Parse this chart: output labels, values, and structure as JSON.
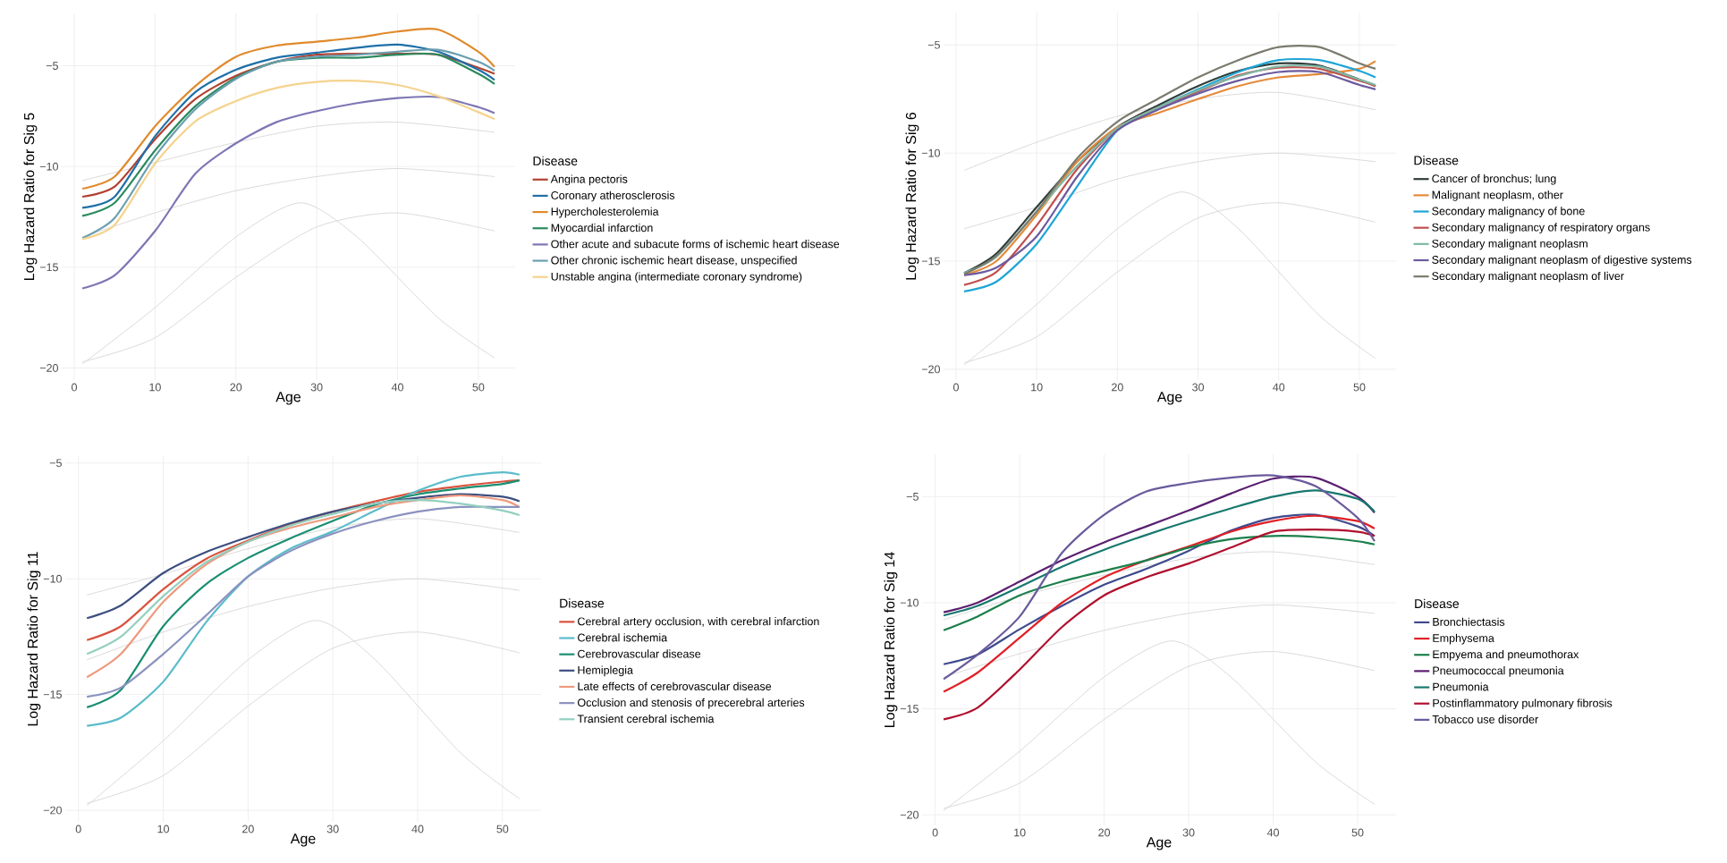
{
  "chart_data": [
    {
      "type": "line",
      "xlabel": "Age",
      "ylabel": "Log Hazard Ratio for Sig 5",
      "legend_title": "Disease",
      "legend": "right",
      "grid": true,
      "marker": "none",
      "line_style": "solid",
      "xlim": [
        -1.55,
        54.55
      ],
      "ylim": [
        -20.6,
        -2.4
      ],
      "xticks": [
        0,
        10,
        20,
        30,
        40,
        50
      ],
      "yticks": [
        {
          "value": -20,
          "label": "−20"
        },
        {
          "value": -15,
          "label": "−15"
        },
        {
          "value": -10,
          "label": "−10"
        },
        {
          "value": -5,
          "label": "−5"
        }
      ],
      "x": [
        1,
        5,
        10,
        15,
        20,
        25,
        30,
        35,
        40,
        45,
        50,
        52
      ],
      "series": [
        {
          "color": "#d6d6d6",
          "x": [
            1,
            10,
            20,
            30,
            40,
            52
          ],
          "values": [
            -10.7,
            -9.8,
            -8.8,
            -8.0,
            -7.8,
            -8.3
          ]
        },
        {
          "color": "#d6d6d6",
          "x": [
            1,
            10,
            20,
            30,
            40,
            52
          ],
          "values": [
            -13.5,
            -12.3,
            -11.2,
            -10.5,
            -10.1,
            -10.5
          ]
        },
        {
          "color": "#d6d6d6",
          "x": [
            1,
            10,
            20,
            30,
            40,
            52
          ],
          "values": [
            -19.7,
            -18.5,
            -15.5,
            -13.0,
            -12.3,
            -13.2
          ]
        },
        {
          "color": "#d6d6d6",
          "x": [
            1,
            10,
            20,
            28,
            35,
            45,
            52
          ],
          "values": [
            -19.8,
            -17.0,
            -13.5,
            -11.8,
            -13.5,
            -17.5,
            -19.5
          ]
        },
        {
          "name": "Angina pectoris",
          "color": "#b2402f",
          "values": [
            -11.5,
            -11.0,
            -8.65,
            -6.65,
            -5.5,
            -4.8,
            -4.45,
            -4.4,
            -4.4,
            -4.45,
            -5.1,
            -5.4
          ]
        },
        {
          "name": "Coronary atherosclerosis",
          "color": "#1f6fa8",
          "values": [
            -12.05,
            -11.5,
            -8.5,
            -6.3,
            -5.2,
            -4.6,
            -4.35,
            -4.1,
            -3.95,
            -4.3,
            -5.2,
            -5.7
          ]
        },
        {
          "name": "Hypercholesterolemia",
          "color": "#e08a2c",
          "values": [
            -11.1,
            -10.5,
            -8.0,
            -6.0,
            -4.55,
            -4.0,
            -3.8,
            -3.6,
            -3.3,
            -3.2,
            -4.3,
            -5.05
          ]
        },
        {
          "name": "Myocardial infarction",
          "color": "#2a8a5e",
          "values": [
            -12.45,
            -11.8,
            -9.2,
            -7.0,
            -5.6,
            -4.8,
            -4.6,
            -4.6,
            -4.45,
            -4.45,
            -5.4,
            -5.9
          ]
        },
        {
          "name": "Other acute and subacute forms of ischemic heart disease",
          "color": "#7d76b5",
          "values": [
            -16.05,
            -15.4,
            -13.2,
            -10.35,
            -8.85,
            -7.8,
            -7.25,
            -6.85,
            -6.6,
            -6.55,
            -7.05,
            -7.35
          ]
        },
        {
          "name": "Other chronic ischemic heart disease, unspecified",
          "color": "#6b9fb0",
          "values": [
            -13.55,
            -12.55,
            -9.5,
            -7.15,
            -5.65,
            -4.8,
            -4.55,
            -4.45,
            -4.3,
            -4.2,
            -4.8,
            -5.25
          ]
        },
        {
          "name": "Unstable angina (intermediate coronary syndrome)",
          "color": "#f5d38e",
          "values": [
            -13.6,
            -12.9,
            -9.85,
            -7.75,
            -6.75,
            -6.1,
            -5.8,
            -5.75,
            -5.95,
            -6.5,
            -7.3,
            -7.65
          ]
        }
      ]
    },
    {
      "type": "line",
      "xlabel": "Age",
      "ylabel": "Log Hazard Ratio for Sig 6",
      "legend_title": "Disease",
      "legend": "right",
      "grid": true,
      "marker": "none",
      "line_style": "solid",
      "xlim": [
        -1.55,
        54.55
      ],
      "ylim": [
        -20.5,
        -3.5
      ],
      "xticks": [
        0,
        10,
        20,
        30,
        40,
        50
      ],
      "yticks": [
        {
          "value": -20,
          "label": "−20"
        },
        {
          "value": -15,
          "label": "−15"
        },
        {
          "value": -10,
          "label": "−10"
        },
        {
          "value": -5,
          "label": "−5"
        }
      ],
      "x": [
        1,
        5,
        10,
        15,
        20,
        25,
        30,
        35,
        40,
        45,
        50,
        52
      ],
      "series": [
        {
          "color": "#d6d6d6",
          "x": [
            1,
            10,
            20,
            30,
            40,
            52
          ],
          "values": [
            -10.8,
            -9.5,
            -8.3,
            -7.5,
            -7.2,
            -8.0
          ]
        },
        {
          "color": "#d6d6d6",
          "x": [
            1,
            10,
            20,
            30,
            40,
            52
          ],
          "values": [
            -13.5,
            -12.5,
            -11.2,
            -10.4,
            -10.0,
            -10.4
          ]
        },
        {
          "color": "#d6d6d6",
          "x": [
            1,
            10,
            20,
            30,
            40,
            52
          ],
          "values": [
            -19.7,
            -18.5,
            -15.5,
            -13.0,
            -12.3,
            -13.2
          ]
        },
        {
          "color": "#d6d6d6",
          "x": [
            1,
            10,
            20,
            28,
            35,
            45,
            52
          ],
          "values": [
            -19.8,
            -17.0,
            -13.5,
            -11.8,
            -13.5,
            -17.5,
            -19.5
          ]
        },
        {
          "name": "Cancer of bronchus; lung",
          "color": "#2f3e3a",
          "values": [
            -15.55,
            -14.65,
            -12.5,
            -10.4,
            -8.8,
            -7.8,
            -6.9,
            -6.2,
            -5.85,
            -5.95,
            -6.6,
            -6.9
          ]
        },
        {
          "name": "Malignant neoplasm, other",
          "color": "#e58a3a",
          "values": [
            -15.65,
            -15.0,
            -12.85,
            -10.4,
            -8.8,
            -8.15,
            -7.5,
            -6.9,
            -6.5,
            -6.35,
            -6.1,
            -5.75
          ]
        },
        {
          "name": "Secondary malignancy of bone",
          "color": "#1ea5d6",
          "values": [
            -16.4,
            -15.95,
            -14.2,
            -11.55,
            -8.95,
            -7.9,
            -7.05,
            -6.25,
            -5.7,
            -5.7,
            -6.2,
            -6.5
          ]
        },
        {
          "name": "Secondary malignancy of respiratory organs",
          "color": "#c0504d",
          "values": [
            -16.1,
            -15.5,
            -13.35,
            -10.75,
            -8.85,
            -7.9,
            -7.15,
            -6.4,
            -6.05,
            -6.1,
            -6.65,
            -6.9
          ]
        },
        {
          "name": "Secondary malignant neoplasm",
          "color": "#7fb8a5",
          "values": [
            -15.55,
            -14.8,
            -12.7,
            -10.6,
            -8.85,
            -7.9,
            -7.1,
            -6.45,
            -6.0,
            -6.0,
            -6.6,
            -6.85
          ]
        },
        {
          "name": "Secondary malignant neoplasm of digestive systems",
          "color": "#6b5a9e",
          "values": [
            -15.65,
            -15.3,
            -13.85,
            -11.1,
            -8.95,
            -8.0,
            -7.25,
            -6.65,
            -6.25,
            -6.25,
            -6.85,
            -7.05
          ]
        },
        {
          "name": "Secondary malignant neoplasm of liver",
          "color": "#7a7a6e",
          "values": [
            -15.6,
            -14.75,
            -12.7,
            -10.25,
            -8.55,
            -7.5,
            -6.5,
            -5.7,
            -5.1,
            -5.1,
            -5.85,
            -6.1
          ]
        }
      ]
    },
    {
      "type": "line",
      "xlabel": "Age",
      "ylabel": "Log Hazard Ratio for Sig 11",
      "legend_title": "Disease",
      "legend": "right",
      "grid": true,
      "marker": "none",
      "line_style": "solid",
      "xlim": [
        -1.55,
        54.55
      ],
      "ylim": [
        -20.5,
        -4.7
      ],
      "xticks": [
        0,
        10,
        20,
        30,
        40,
        50
      ],
      "yticks": [
        {
          "value": -20,
          "label": "−20"
        },
        {
          "value": -15,
          "label": "−15"
        },
        {
          "value": -10,
          "label": "−10"
        },
        {
          "value": -5,
          "label": "−5"
        }
      ],
      "x": [
        1,
        5,
        10,
        15,
        20,
        25,
        30,
        35,
        40,
        45,
        50,
        52
      ],
      "series": [
        {
          "color": "#d6d6d6",
          "x": [
            1,
            10,
            20,
            30,
            40,
            52
          ],
          "values": [
            -10.7,
            -9.8,
            -8.7,
            -7.8,
            -7.4,
            -8.0
          ]
        },
        {
          "color": "#d6d6d6",
          "x": [
            1,
            10,
            20,
            30,
            40,
            52
          ],
          "values": [
            -13.5,
            -12.3,
            -11.2,
            -10.4,
            -10.0,
            -10.5
          ]
        },
        {
          "color": "#d6d6d6",
          "x": [
            1,
            10,
            20,
            30,
            40,
            52
          ],
          "values": [
            -19.7,
            -18.5,
            -15.5,
            -13.0,
            -12.3,
            -13.2
          ]
        },
        {
          "color": "#d6d6d6",
          "x": [
            1,
            10,
            20,
            28,
            35,
            45,
            52
          ],
          "values": [
            -19.8,
            -17.0,
            -13.5,
            -11.8,
            -13.5,
            -17.5,
            -19.5
          ]
        },
        {
          "name": "Cerebral artery occlusion, with cerebral infarction",
          "color": "#d9533f",
          "values": [
            -12.65,
            -12.05,
            -10.45,
            -9.15,
            -8.35,
            -7.65,
            -7.1,
            -6.65,
            -6.25,
            -6.0,
            -5.8,
            -5.75
          ]
        },
        {
          "name": "Cerebral ischemia",
          "color": "#5bbccb",
          "values": [
            -16.35,
            -16.0,
            -14.45,
            -11.9,
            -9.9,
            -8.7,
            -7.95,
            -7.05,
            -6.2,
            -5.6,
            -5.4,
            -5.5
          ]
        },
        {
          "name": "Cerebrovascular disease",
          "color": "#1a8f72",
          "values": [
            -15.55,
            -14.8,
            -12.05,
            -10.25,
            -9.1,
            -8.25,
            -7.5,
            -6.8,
            -6.35,
            -6.1,
            -5.9,
            -5.75
          ]
        },
        {
          "name": "Hemiplegia",
          "color": "#3d4f80",
          "values": [
            -11.7,
            -11.15,
            -9.75,
            -8.85,
            -8.2,
            -7.6,
            -7.1,
            -6.75,
            -6.5,
            -6.35,
            -6.45,
            -6.65
          ]
        },
        {
          "name": "Late effects of cerebrovascular disease",
          "color": "#ee9a7e",
          "values": [
            -14.25,
            -13.25,
            -11.0,
            -9.4,
            -8.4,
            -7.8,
            -7.35,
            -6.9,
            -6.6,
            -6.4,
            -6.6,
            -6.9
          ]
        },
        {
          "name": "Occlusion and stenosis of precerebral arteries",
          "color": "#8a92bf",
          "values": [
            -15.1,
            -14.7,
            -13.25,
            -11.6,
            -9.9,
            -8.8,
            -8.05,
            -7.5,
            -7.1,
            -6.9,
            -6.9,
            -6.9
          ]
        },
        {
          "name": "Transient cerebral ischemia",
          "color": "#93cfbf",
          "values": [
            -13.25,
            -12.5,
            -10.75,
            -9.3,
            -8.4,
            -7.7,
            -7.2,
            -6.75,
            -6.6,
            -6.75,
            -7.05,
            -7.25
          ]
        }
      ]
    },
    {
      "type": "line",
      "xlabel": "Age",
      "ylabel": "Log Hazard Ratio for Sig 14",
      "legend_title": "Disease",
      "legend": "right",
      "grid": true,
      "marker": "none",
      "line_style": "solid",
      "xlim": [
        -1.55,
        54.55
      ],
      "ylim": [
        -20.5,
        -3.0
      ],
      "xticks": [
        0,
        10,
        20,
        30,
        40,
        50
      ],
      "yticks": [
        {
          "value": -20,
          "label": "−20"
        },
        {
          "value": -15,
          "label": "−15"
        },
        {
          "value": -10,
          "label": "−10"
        },
        {
          "value": -5,
          "label": "−5"
        }
      ],
      "x": [
        1,
        5,
        10,
        15,
        20,
        25,
        30,
        35,
        40,
        45,
        50,
        52
      ],
      "series": [
        {
          "color": "#d6d6d6",
          "x": [
            1,
            10,
            20,
            30,
            40,
            52
          ],
          "values": [
            -10.8,
            -9.7,
            -8.7,
            -7.9,
            -7.6,
            -8.2
          ]
        },
        {
          "color": "#d6d6d6",
          "x": [
            1,
            10,
            20,
            30,
            40,
            52
          ],
          "values": [
            -13.5,
            -12.4,
            -11.3,
            -10.5,
            -10.1,
            -10.5
          ]
        },
        {
          "color": "#d6d6d6",
          "x": [
            1,
            10,
            20,
            30,
            40,
            52
          ],
          "values": [
            -19.7,
            -18.5,
            -15.5,
            -13.0,
            -12.3,
            -13.2
          ]
        },
        {
          "color": "#d6d6d6",
          "x": [
            1,
            10,
            20,
            28,
            35,
            45,
            52
          ],
          "values": [
            -19.8,
            -17.0,
            -13.5,
            -11.8,
            -13.5,
            -17.5,
            -19.5
          ]
        },
        {
          "name": "Bronchiectasis",
          "color": "#3e4a8c",
          "values": [
            -12.9,
            -12.45,
            -11.25,
            -10.15,
            -9.15,
            -8.4,
            -7.55,
            -6.6,
            -6.0,
            -5.85,
            -6.4,
            -6.85
          ]
        },
        {
          "name": "Emphysema",
          "color": "#e02027",
          "values": [
            -14.2,
            -13.3,
            -11.65,
            -10.0,
            -8.8,
            -8.0,
            -7.35,
            -6.65,
            -6.15,
            -5.9,
            -6.15,
            -6.5
          ]
        },
        {
          "name": "Empyema and pneumothorax",
          "color": "#1b7f4c",
          "values": [
            -11.3,
            -10.65,
            -9.65,
            -9.0,
            -8.5,
            -8.0,
            -7.4,
            -7.0,
            -6.85,
            -6.9,
            -7.1,
            -7.25
          ]
        },
        {
          "name": "Pneumococcal pneumonia",
          "color": "#5b1f70",
          "values": [
            -10.45,
            -10.0,
            -9.0,
            -8.0,
            -7.15,
            -6.4,
            -5.65,
            -4.85,
            -4.15,
            -4.1,
            -5.0,
            -5.75
          ]
        },
        {
          "name": "Pneumonia",
          "color": "#18786e",
          "values": [
            -10.6,
            -10.15,
            -9.25,
            -8.3,
            -7.5,
            -6.8,
            -6.15,
            -5.55,
            -5.0,
            -4.7,
            -5.1,
            -5.7
          ]
        },
        {
          "name": "Postinflammatory pulmonary fibrosis",
          "color": "#b0102e",
          "values": [
            -15.5,
            -14.95,
            -13.15,
            -11.15,
            -9.65,
            -8.8,
            -8.15,
            -7.4,
            -6.65,
            -6.55,
            -6.65,
            -6.85
          ]
        },
        {
          "name": "Tobacco use disorder",
          "color": "#6a5a9c",
          "values": [
            -13.6,
            -12.45,
            -10.65,
            -7.65,
            -5.85,
            -4.75,
            -4.35,
            -4.1,
            -4.0,
            -4.5,
            -6.0,
            -7.1
          ]
        }
      ]
    }
  ]
}
